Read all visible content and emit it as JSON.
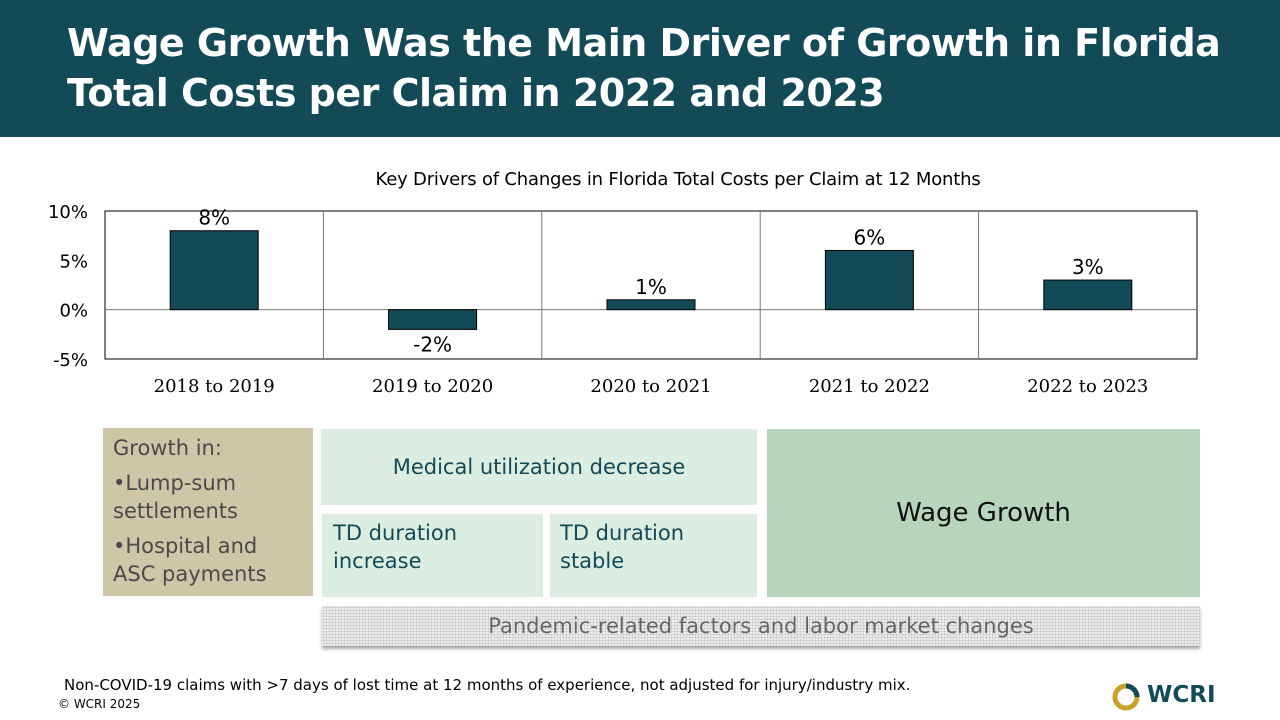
{
  "header": {
    "title": "Wage Growth Was the Main Driver of Growth in Florida Total Costs per Claim in 2022 and 2023"
  },
  "chart_data": {
    "type": "bar",
    "title": "Key Drivers of Changes in Florida Total Costs per Claim at 12 Months",
    "categories": [
      "2018 to 2019",
      "2019 to 2020",
      "2020 to 2021",
      "2021 to 2022",
      "2022 to 2023"
    ],
    "values": [
      8,
      -2,
      1,
      6,
      3
    ],
    "data_labels": [
      "8%",
      "-2%",
      "1%",
      "6%",
      "3%"
    ],
    "ylim": [
      -5,
      10
    ],
    "yticks": [
      10,
      5,
      0,
      -5
    ],
    "ytick_labels": [
      "10%",
      "5%",
      "0%",
      "-5%"
    ],
    "xlabel": "",
    "ylabel": "",
    "bar_color": "#124a57"
  },
  "drivers": {
    "growth_heading": "Growth in:",
    "growth_item_1a": "•Lump-sum",
    "growth_item_1b": "settlements",
    "growth_item_2a": "•Hospital and",
    "growth_item_2b": "ASC payments",
    "medical": "Medical utilization decrease",
    "td_increase_a": "TD duration",
    "td_increase_b": "increase",
    "td_stable_a": "TD duration",
    "td_stable_b": "stable",
    "wage": "Wage Growth",
    "pandemic": "Pandemic-related factors and labor market changes"
  },
  "footnote": "Non-COVID-19 claims with >7 days of lost time at 12 months of experience, not adjusted for injury/industry mix.",
  "copyright": "© WCRI 2025",
  "logo": {
    "text": "WCRI",
    "primary_color": "#124a57",
    "accent_color": "#c9a227"
  }
}
